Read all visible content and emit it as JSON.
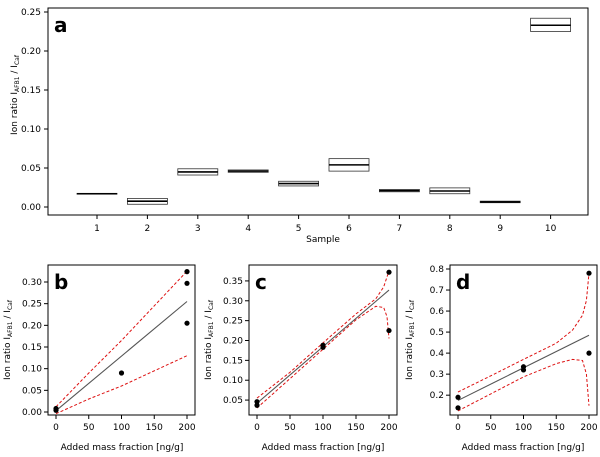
{
  "chart_data": [
    {
      "panel": "a",
      "type": "box",
      "xlabel": "Sample",
      "ylabel": {
        "prefix": "Ion ratio  I",
        "sub1": "AFB1",
        "mid": " / I",
        "sub2": "Caf"
      },
      "ylim": [
        0,
        0.25
      ],
      "yticks": [
        "0.00",
        "0.05",
        "0.10",
        "0.15",
        "0.20",
        "0.25"
      ],
      "categories": [
        "1",
        "2",
        "3",
        "4",
        "5",
        "6",
        "7",
        "8",
        "9",
        "10"
      ],
      "boxes": [
        {
          "low": 0.0165,
          "mid": 0.017,
          "high": 0.0175
        },
        {
          "low": 0.0035,
          "mid": 0.0075,
          "high": 0.011
        },
        {
          "low": 0.041,
          "mid": 0.045,
          "high": 0.049
        },
        {
          "low": 0.0445,
          "mid": 0.046,
          "high": 0.0475
        },
        {
          "low": 0.027,
          "mid": 0.03,
          "high": 0.033
        },
        {
          "low": 0.046,
          "mid": 0.054,
          "high": 0.062
        },
        {
          "low": 0.0195,
          "mid": 0.021,
          "high": 0.0225
        },
        {
          "low": 0.017,
          "mid": 0.0205,
          "high": 0.0245
        },
        {
          "low": 0.0055,
          "mid": 0.0065,
          "high": 0.0075
        },
        {
          "low": 0.225,
          "mid": 0.233,
          "high": 0.242
        }
      ]
    },
    {
      "panel": "b",
      "type": "scatter",
      "xlabel": "Added mass fraction [ng/g]",
      "ylabel": {
        "prefix": "Ion ratio  I",
        "sub1": "AFB1",
        "mid": " / I",
        "sub2": "Caf"
      },
      "xlim": [
        0,
        200
      ],
      "ylim": [
        0,
        0.33
      ],
      "xticks": [
        0,
        50,
        100,
        150,
        200
      ],
      "yticks": [
        "0.00",
        "0.05",
        "0.10",
        "0.15",
        "0.20",
        "0.25",
        "0.30"
      ],
      "points": [
        [
          0,
          0.004
        ],
        [
          0,
          0.008
        ],
        [
          100,
          0.09
        ],
        [
          200,
          0.205
        ],
        [
          200,
          0.297
        ],
        [
          200,
          0.324
        ]
      ],
      "fit": [
        [
          0,
          0.003
        ],
        [
          200,
          0.255
        ]
      ],
      "band_upper": [
        [
          0,
          0.012
        ],
        [
          50,
          0.09
        ],
        [
          100,
          0.165
        ],
        [
          150,
          0.245
        ],
        [
          200,
          0.325
        ]
      ],
      "band_lower": [
        [
          0,
          -0.004
        ],
        [
          50,
          0.03
        ],
        [
          100,
          0.06
        ],
        [
          150,
          0.095
        ],
        [
          200,
          0.13
        ]
      ]
    },
    {
      "panel": "c",
      "type": "scatter",
      "xlabel": "Added mass fraction [ng/g]",
      "ylabel": {
        "prefix": "Ion ratio  I",
        "sub1": "AFB1",
        "mid": " / I",
        "sub2": "Caf"
      },
      "xlim": [
        0,
        200
      ],
      "ylim": [
        0.02,
        0.38
      ],
      "xticks": [
        0,
        50,
        100,
        150,
        200
      ],
      "yticks": [
        "0.05",
        "0.10",
        "0.15",
        "0.20",
        "0.25",
        "0.30",
        "0.35"
      ],
      "points": [
        [
          0,
          0.037
        ],
        [
          0,
          0.046
        ],
        [
          100,
          0.183
        ],
        [
          100,
          0.188
        ],
        [
          200,
          0.225
        ],
        [
          200,
          0.372
        ]
      ],
      "fit": [
        [
          0,
          0.042
        ],
        [
          200,
          0.327
        ]
      ],
      "band_upper": [
        [
          0,
          0.055
        ],
        [
          50,
          0.12
        ],
        [
          100,
          0.194
        ],
        [
          150,
          0.267
        ],
        [
          180,
          0.305
        ],
        [
          192,
          0.335
        ],
        [
          197,
          0.36
        ],
        [
          200,
          0.375
        ]
      ],
      "band_lower": [
        [
          0,
          0.03
        ],
        [
          50,
          0.104
        ],
        [
          100,
          0.178
        ],
        [
          150,
          0.252
        ],
        [
          180,
          0.286
        ],
        [
          192,
          0.283
        ],
        [
          197,
          0.26
        ],
        [
          200,
          0.205
        ]
      ]
    },
    {
      "panel": "d",
      "type": "scatter",
      "xlabel": "Added mass fraction [ng/g]",
      "ylabel": {
        "prefix": "Ion ratio  I",
        "sub1": "AFB1",
        "mid": " / I",
        "sub2": "Caf"
      },
      "xlim": [
        0,
        200
      ],
      "ylim": [
        0.12,
        0.8
      ],
      "xticks": [
        0,
        50,
        100,
        150,
        200
      ],
      "yticks": [
        "0.2",
        "0.3",
        "0.4",
        "0.5",
        "0.6",
        "0.7",
        "0.8"
      ],
      "points": [
        [
          0,
          0.14
        ],
        [
          0,
          0.19
        ],
        [
          100,
          0.32
        ],
        [
          100,
          0.335
        ],
        [
          200,
          0.4
        ],
        [
          200,
          0.78
        ]
      ],
      "fit": [
        [
          0,
          0.175
        ],
        [
          200,
          0.485
        ]
      ],
      "band_upper": [
        [
          0,
          0.215
        ],
        [
          50,
          0.292
        ],
        [
          100,
          0.37
        ],
        [
          150,
          0.447
        ],
        [
          175,
          0.51
        ],
        [
          190,
          0.58
        ],
        [
          196,
          0.65
        ],
        [
          200,
          0.78
        ]
      ],
      "band_lower": [
        [
          0,
          0.125
        ],
        [
          50,
          0.206
        ],
        [
          100,
          0.287
        ],
        [
          150,
          0.35
        ],
        [
          175,
          0.37
        ],
        [
          190,
          0.365
        ],
        [
          196,
          0.3
        ],
        [
          200,
          0.15
        ]
      ]
    }
  ],
  "colors": {
    "axis": "#000000",
    "fit": "#555555",
    "band": "#dd1111",
    "point": "#000000",
    "box": "#333333"
  }
}
